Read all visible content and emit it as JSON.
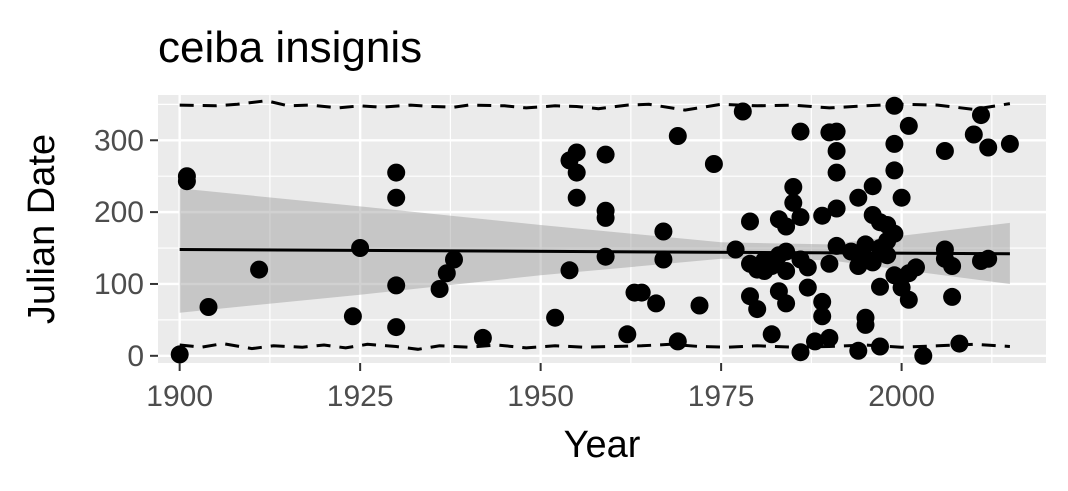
{
  "chart_data": {
    "type": "scatter",
    "title": "ceiba insignis",
    "xlabel": "Year",
    "ylabel": "Julian Date",
    "xlim": [
      1897,
      2020
    ],
    "ylim": [
      -10,
      363
    ],
    "xticks": [
      1900,
      1925,
      1950,
      1975,
      2000
    ],
    "yticks": [
      0,
      100,
      200,
      300
    ],
    "grid": true,
    "background": "#ebebeb",
    "points": [
      {
        "x": 1900,
        "y": 2
      },
      {
        "x": 1901,
        "y": 243
      },
      {
        "x": 1901,
        "y": 250
      },
      {
        "x": 1904,
        "y": 68
      },
      {
        "x": 1911,
        "y": 120
      },
      {
        "x": 1924,
        "y": 55
      },
      {
        "x": 1925,
        "y": 150
      },
      {
        "x": 1930,
        "y": 255
      },
      {
        "x": 1930,
        "y": 220
      },
      {
        "x": 1930,
        "y": 98
      },
      {
        "x": 1930,
        "y": 40
      },
      {
        "x": 1936,
        "y": 93
      },
      {
        "x": 1937,
        "y": 115
      },
      {
        "x": 1938,
        "y": 134
      },
      {
        "x": 1942,
        "y": 25
      },
      {
        "x": 1952,
        "y": 53
      },
      {
        "x": 1954,
        "y": 272
      },
      {
        "x": 1954,
        "y": 119
      },
      {
        "x": 1955,
        "y": 283
      },
      {
        "x": 1955,
        "y": 255
      },
      {
        "x": 1955,
        "y": 220
      },
      {
        "x": 1959,
        "y": 280
      },
      {
        "x": 1959,
        "y": 202
      },
      {
        "x": 1959,
        "y": 192
      },
      {
        "x": 1959,
        "y": 138
      },
      {
        "x": 1962,
        "y": 30
      },
      {
        "x": 1963,
        "y": 88
      },
      {
        "x": 1964,
        "y": 88
      },
      {
        "x": 1966,
        "y": 73
      },
      {
        "x": 1967,
        "y": 173
      },
      {
        "x": 1967,
        "y": 134
      },
      {
        "x": 1969,
        "y": 306
      },
      {
        "x": 1969,
        "y": 20
      },
      {
        "x": 1972,
        "y": 70
      },
      {
        "x": 1974,
        "y": 267
      },
      {
        "x": 1977,
        "y": 148
      },
      {
        "x": 1978,
        "y": 340
      },
      {
        "x": 1979,
        "y": 187
      },
      {
        "x": 1979,
        "y": 128
      },
      {
        "x": 1979,
        "y": 83
      },
      {
        "x": 1980,
        "y": 65
      },
      {
        "x": 1980,
        "y": 120
      },
      {
        "x": 1981,
        "y": 133
      },
      {
        "x": 1981,
        "y": 118
      },
      {
        "x": 1982,
        "y": 125
      },
      {
        "x": 1982,
        "y": 30
      },
      {
        "x": 1983,
        "y": 190
      },
      {
        "x": 1983,
        "y": 140
      },
      {
        "x": 1983,
        "y": 90
      },
      {
        "x": 1984,
        "y": 180
      },
      {
        "x": 1984,
        "y": 145
      },
      {
        "x": 1984,
        "y": 118
      },
      {
        "x": 1984,
        "y": 73
      },
      {
        "x": 1985,
        "y": 235
      },
      {
        "x": 1985,
        "y": 213
      },
      {
        "x": 1986,
        "y": 312
      },
      {
        "x": 1986,
        "y": 193
      },
      {
        "x": 1986,
        "y": 134
      },
      {
        "x": 1986,
        "y": 5
      },
      {
        "x": 1987,
        "y": 123
      },
      {
        "x": 1987,
        "y": 95
      },
      {
        "x": 1988,
        "y": 20
      },
      {
        "x": 1989,
        "y": 195
      },
      {
        "x": 1989,
        "y": 75
      },
      {
        "x": 1989,
        "y": 55
      },
      {
        "x": 1990,
        "y": 311
      },
      {
        "x": 1990,
        "y": 128
      },
      {
        "x": 1990,
        "y": 25
      },
      {
        "x": 1991,
        "y": 312
      },
      {
        "x": 1991,
        "y": 285
      },
      {
        "x": 1991,
        "y": 255
      },
      {
        "x": 1991,
        "y": 205
      },
      {
        "x": 1991,
        "y": 153
      },
      {
        "x": 1993,
        "y": 145
      },
      {
        "x": 1994,
        "y": 220
      },
      {
        "x": 1994,
        "y": 125
      },
      {
        "x": 1994,
        "y": 7
      },
      {
        "x": 1995,
        "y": 155
      },
      {
        "x": 1995,
        "y": 135
      },
      {
        "x": 1995,
        "y": 53
      },
      {
        "x": 1995,
        "y": 43
      },
      {
        "x": 1996,
        "y": 236
      },
      {
        "x": 1996,
        "y": 196
      },
      {
        "x": 1996,
        "y": 130
      },
      {
        "x": 1997,
        "y": 186
      },
      {
        "x": 1997,
        "y": 150
      },
      {
        "x": 1997,
        "y": 96
      },
      {
        "x": 1997,
        "y": 13
      },
      {
        "x": 1998,
        "y": 182
      },
      {
        "x": 1998,
        "y": 140
      },
      {
        "x": 1998,
        "y": 160
      },
      {
        "x": 1999,
        "y": 348
      },
      {
        "x": 1999,
        "y": 295
      },
      {
        "x": 1999,
        "y": 258
      },
      {
        "x": 1999,
        "y": 170
      },
      {
        "x": 1999,
        "y": 112
      },
      {
        "x": 2000,
        "y": 220
      },
      {
        "x": 2000,
        "y": 95
      },
      {
        "x": 2001,
        "y": 320
      },
      {
        "x": 2001,
        "y": 115
      },
      {
        "x": 2001,
        "y": 78
      },
      {
        "x": 2002,
        "y": 123
      },
      {
        "x": 2003,
        "y": 0
      },
      {
        "x": 2006,
        "y": 148
      },
      {
        "x": 2006,
        "y": 135
      },
      {
        "x": 2006,
        "y": 285
      },
      {
        "x": 2007,
        "y": 125
      },
      {
        "x": 2007,
        "y": 82
      },
      {
        "x": 2008,
        "y": 17
      },
      {
        "x": 2010,
        "y": 308
      },
      {
        "x": 2011,
        "y": 335
      },
      {
        "x": 2011,
        "y": 132
      },
      {
        "x": 2012,
        "y": 290
      },
      {
        "x": 2012,
        "y": 135
      },
      {
        "x": 2015,
        "y": 295
      }
    ],
    "trend": {
      "x": [
        1900,
        2015
      ],
      "y": [
        148,
        142
      ]
    },
    "ribbon": {
      "x": [
        1900,
        1925,
        1950,
        1975,
        1990,
        2015
      ],
      "lower": [
        60,
        85,
        112,
        135,
        133,
        100
      ],
      "upper": [
        233,
        208,
        182,
        158,
        155,
        185
      ]
    },
    "upper_quantile": {
      "x": [
        1900,
        1905,
        1908,
        1912,
        1915,
        1918,
        1922,
        1925,
        1928,
        1932,
        1935,
        1938,
        1940,
        1945,
        1948,
        1952,
        1955,
        1958,
        1962,
        1965,
        1970,
        1975,
        1980,
        1985,
        1990,
        1995,
        2000,
        2005,
        2010,
        2015
      ],
      "y": [
        349,
        348,
        350,
        355,
        348,
        349,
        345,
        348,
        346,
        349,
        347,
        346,
        349,
        348,
        345,
        348,
        347,
        344,
        349,
        350,
        342,
        350,
        348,
        349,
        345,
        348,
        350,
        349,
        343,
        351
      ]
    },
    "lower_quantile": {
      "x": [
        1900,
        1903,
        1906,
        1910,
        1913,
        1917,
        1920,
        1923,
        1926,
        1930,
        1933,
        1936,
        1940,
        1944,
        1948,
        1952,
        1956,
        1960,
        1964,
        1968,
        1972,
        1976,
        1980,
        1985,
        1990,
        1995,
        2000,
        2005,
        2010,
        2015
      ],
      "y": [
        15,
        12,
        17,
        10,
        14,
        12,
        15,
        11,
        16,
        13,
        9,
        14,
        12,
        15,
        11,
        14,
        12,
        13,
        14,
        16,
        13,
        12,
        14,
        12,
        13,
        15,
        12,
        14,
        16,
        13
      ]
    }
  }
}
